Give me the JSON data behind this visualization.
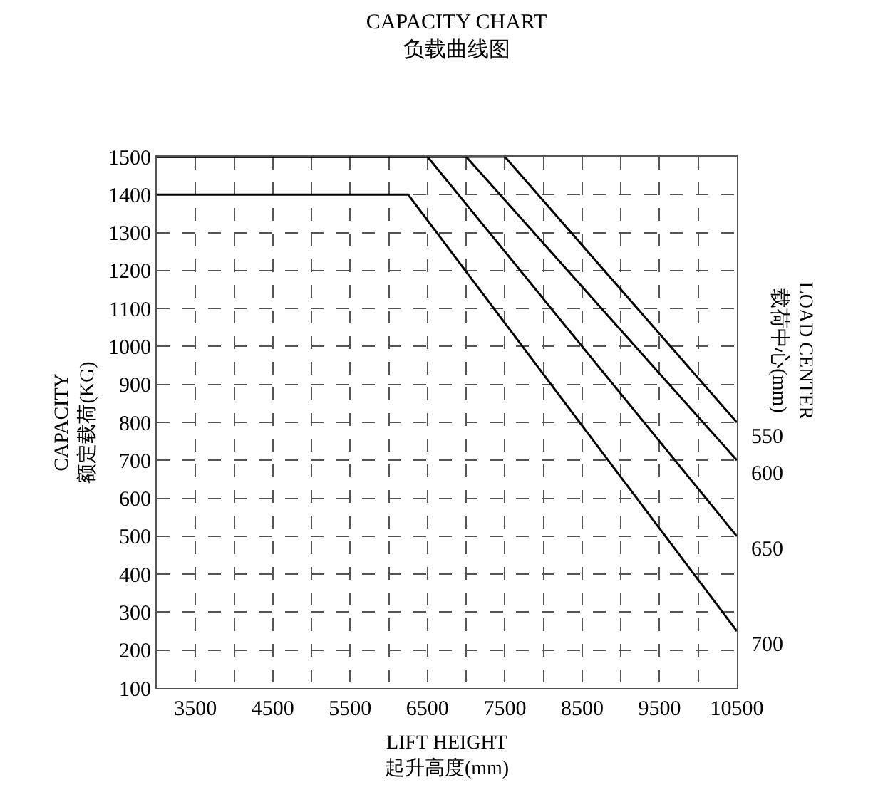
{
  "chart_data": {
    "type": "line",
    "title": "CAPACITY CHART\n负载曲线图",
    "xlabel": "LIFT HEIGHT\n起升高度(mm)",
    "ylabel": "CAPACITY\n额定载荷(KG)",
    "y2label": "LOAD CENTER\n载荷中心(mm)",
    "series": [
      {
        "name": "550",
        "color": "#000000",
        "x": [
          3000,
          7500,
          10500
        ],
        "values": [
          1500,
          1500,
          800
        ]
      },
      {
        "name": "600",
        "color": "#000000",
        "x": [
          3000,
          7000,
          10500
        ],
        "values": [
          1500,
          1500,
          700
        ]
      },
      {
        "name": "650",
        "color": "#000000",
        "x": [
          3000,
          6500,
          10500
        ],
        "values": [
          1500,
          1500,
          500
        ]
      },
      {
        "name": "700",
        "color": "#000000",
        "x": [
          3000,
          6250,
          10500
        ],
        "values": [
          1400,
          1400,
          250
        ]
      }
    ],
    "xlim": [
      3000,
      10500
    ],
    "xticks": [
      3500,
      4500,
      5500,
      6500,
      7500,
      8500,
      9500,
      10500
    ],
    "ylim": [
      100,
      1500
    ],
    "yticks": [
      100,
      200,
      300,
      400,
      500,
      600,
      700,
      800,
      900,
      1000,
      1100,
      1200,
      1300,
      1400,
      1500
    ],
    "grid": true,
    "legend": false,
    "marker": "none",
    "line_style": "solid"
  }
}
